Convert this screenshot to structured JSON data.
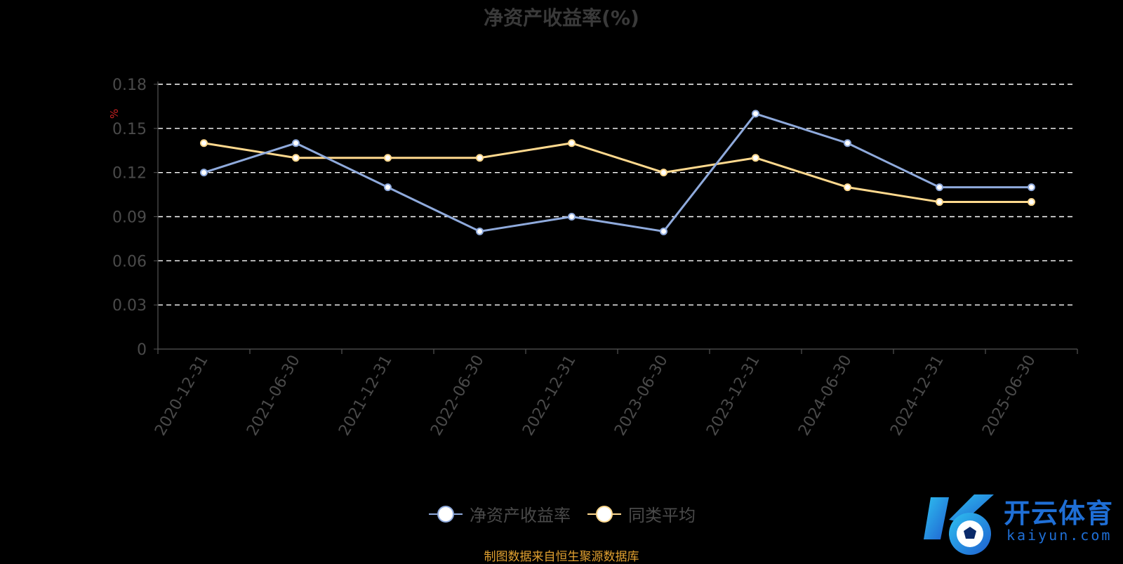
{
  "colors": {
    "background": "#000000",
    "series_roe": "#8faadc",
    "series_avg": "#ffd98e",
    "grid": "#ffffff",
    "axis": "#555555",
    "tick_label": "#4a4a4a",
    "title": "#3a3a3a",
    "source": "#e0a030",
    "brand": "#1f6fd6"
  },
  "watermark": {
    "name_cn": "开云体育",
    "name_en": "kaiyun.com"
  },
  "source_note": "制图数据来自恒生聚源数据库",
  "chart_data": {
    "type": "line",
    "title": "净资产收益率(%)",
    "ylabel": "%",
    "xlabel": "",
    "categories": [
      "2020-12-31",
      "2021-06-30",
      "2021-12-31",
      "2022-06-30",
      "2022-12-31",
      "2023-06-30",
      "2023-12-31",
      "2024-06-30",
      "2024-12-31",
      "2025-06-30"
    ],
    "series": [
      {
        "name": "净资产收益率",
        "color": "#8faadc",
        "values": [
          0.12,
          0.14,
          0.11,
          0.08,
          0.09,
          0.08,
          0.16,
          0.14,
          0.11,
          0.11
        ]
      },
      {
        "name": "同类平均",
        "color": "#ffd98e",
        "values": [
          0.14,
          0.13,
          0.13,
          0.13,
          0.14,
          0.12,
          0.13,
          0.11,
          0.1,
          0.1
        ]
      }
    ],
    "yticks": [
      "0",
      "0.03",
      "0.06",
      "0.09",
      "0.12",
      "0.15",
      "0.18"
    ],
    "ylim": [
      0,
      0.18
    ],
    "grid": true,
    "grid_style": "dashed",
    "legend_position": "bottom"
  }
}
